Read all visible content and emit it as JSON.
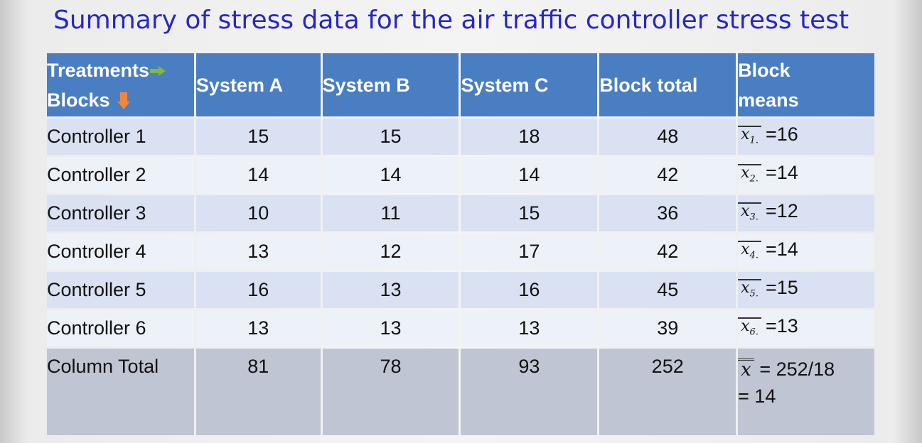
{
  "title": "Summary of stress data for the air traffic controller stress test",
  "headers": {
    "treatments": "Treatments",
    "blocks": "Blocks",
    "columns": [
      "System A",
      "System B",
      "System C",
      "Block total"
    ],
    "block_means_line1": "Block",
    "block_means_line2": "means"
  },
  "colors": {
    "title": "#2727c8",
    "header_bg": "#4a7ec3",
    "row_odd": "#d9e1f2",
    "row_even": "#edf1f8",
    "total_row": "#bfc5d3",
    "arrow_right": "#7dbb3c",
    "arrow_down": "#f0883a"
  },
  "rows": [
    {
      "label": "Controller 1",
      "a": "15",
      "b": "15",
      "c": "18",
      "total": "48",
      "mean_sym": "x",
      "mean_sub": "1.",
      "mean_val": "=16"
    },
    {
      "label": "Controller 2",
      "a": "14",
      "b": "14",
      "c": "14",
      "total": "42",
      "mean_sym": "x",
      "mean_sub": "2.",
      "mean_val": "=14"
    },
    {
      "label": "Controller 3",
      "a": "10",
      "b": "11",
      "c": "15",
      "total": "36",
      "mean_sym": "x",
      "mean_sub": "3.",
      "mean_val": "=12"
    },
    {
      "label": "Controller 4",
      "a": "13",
      "b": "12",
      "c": "17",
      "total": "42",
      "mean_sym": "x",
      "mean_sub": "4.",
      "mean_val": "=14"
    },
    {
      "label": "Controller 5",
      "a": "16",
      "b": "13",
      "c": "16",
      "total": "45",
      "mean_sym": "x",
      "mean_sub": "5.",
      "mean_val": "=15"
    },
    {
      "label": "Controller 6",
      "a": "13",
      "b": "13",
      "c": "13",
      "total": "39",
      "mean_sym": "x",
      "mean_sub": "6.",
      "mean_val": "=13"
    }
  ],
  "total_row": {
    "label": "Column Total",
    "a": "81",
    "b": "78",
    "c": "93",
    "total": "252",
    "grand_sym": "x",
    "grand_line1": "= 252/18",
    "grand_line2": "= 14"
  }
}
